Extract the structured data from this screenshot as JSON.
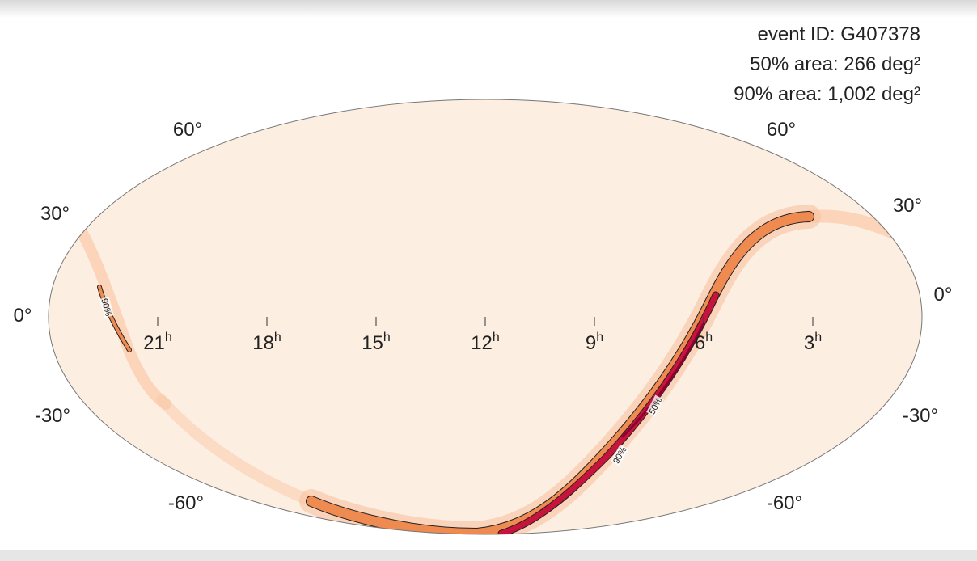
{
  "annotations": [
    "event ID: G407378",
    "50% area: 266 deg²",
    "90% area: 1,002 deg²"
  ],
  "ra_labels": {
    "unit": "h",
    "hours": [
      "21",
      "18",
      "15",
      "12",
      "9",
      "6",
      "3"
    ]
  },
  "dec_labels": {
    "left": [
      "60°",
      "30°",
      "0°",
      "-30°",
      "-60°"
    ],
    "right": [
      "60°",
      "30°",
      "0°",
      "-30°",
      "-60°"
    ]
  },
  "contour_labels": [
    "90%",
    "50%",
    "90%"
  ]
}
